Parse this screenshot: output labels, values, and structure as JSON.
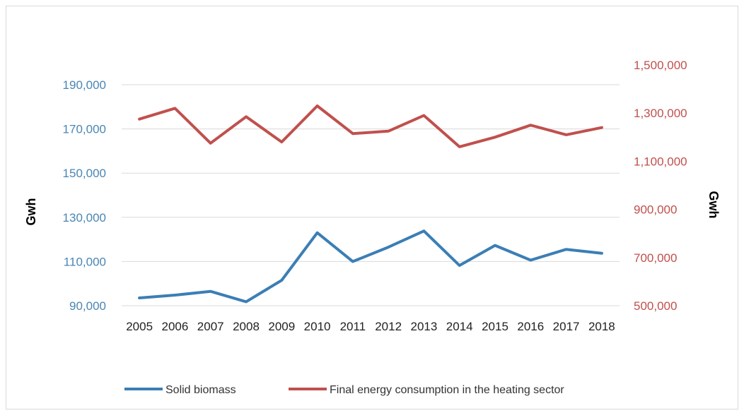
{
  "chart_data": {
    "type": "line",
    "categories": [
      "2005",
      "2006",
      "2007",
      "2008",
      "2009",
      "2010",
      "2011",
      "2012",
      "2013",
      "2014",
      "2015",
      "2016",
      "2017",
      "2018"
    ],
    "series": [
      {
        "name": "Solid biomass",
        "axis": "left",
        "color": "#3b7eb5",
        "values": [
          93500,
          94800,
          96500,
          91800,
          101500,
          123000,
          110000,
          116500,
          123800,
          108200,
          117300,
          110600,
          115500,
          113700
        ]
      },
      {
        "name": "Final energy consumption in the heating sector",
        "axis": "right",
        "color": "#c0504d",
        "values": [
          1275000,
          1320000,
          1175000,
          1285000,
          1180000,
          1330000,
          1215000,
          1225000,
          1290000,
          1160000,
          1200000,
          1250000,
          1210000,
          1240000
        ]
      }
    ],
    "y_left": {
      "label": "Gwh",
      "ticks": [
        90000,
        110000,
        130000,
        150000,
        170000,
        190000
      ],
      "tick_labels": [
        "90,000",
        "110,000",
        "130,000",
        "150,000",
        "170,000",
        "190,000"
      ],
      "range": [
        90000,
        190000
      ],
      "color": "#4a86b4"
    },
    "y_right": {
      "label": "Gwh",
      "ticks": [
        500000,
        700000,
        900000,
        1100000,
        1300000,
        1500000
      ],
      "tick_labels": [
        "500,000",
        "700,000",
        "900,000",
        "1,100,000",
        "1,300,000",
        "1,500,000"
      ],
      "range": [
        500000,
        1500000
      ],
      "color": "#c0504d"
    },
    "grid": true,
    "legend_position": "bottom"
  }
}
